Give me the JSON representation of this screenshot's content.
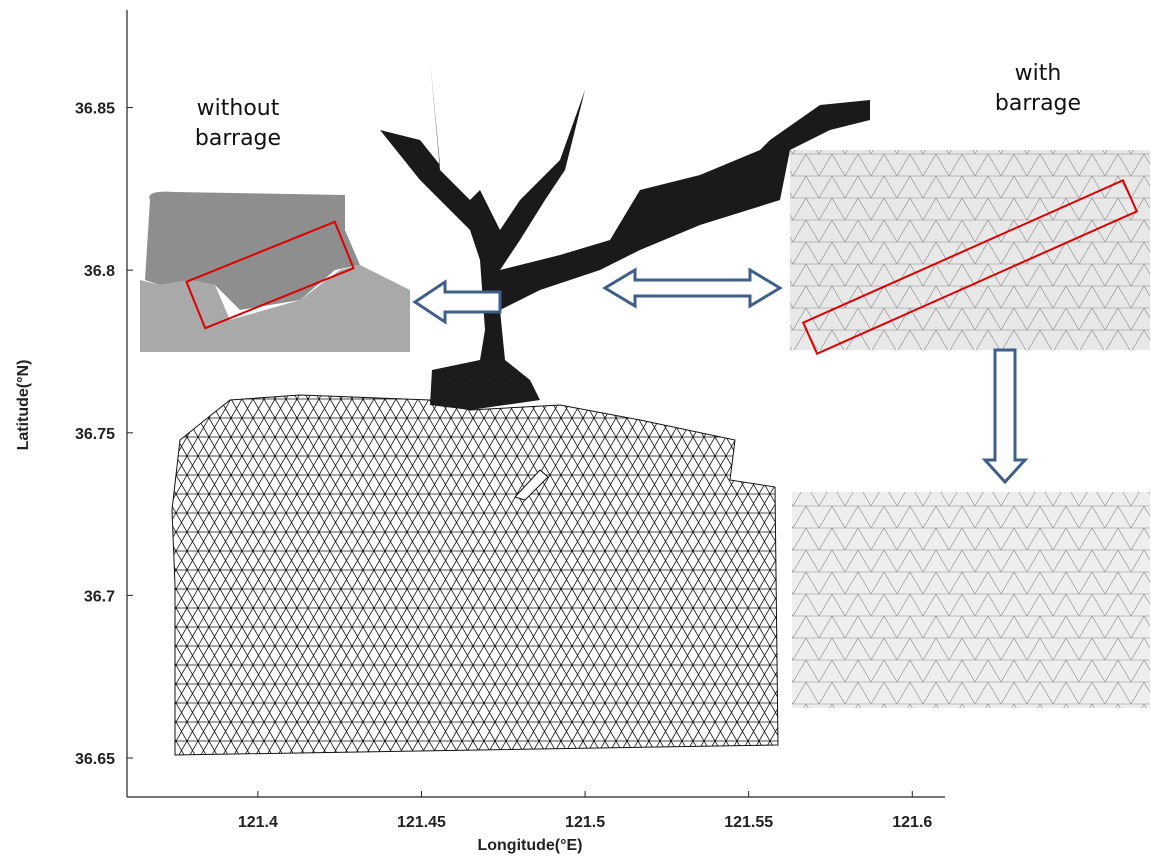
{
  "chart_data": {
    "type": "map",
    "xlabel": "Longitude(°E)",
    "ylabel": "Latitude(°N)",
    "xlim": [
      121.36,
      121.61
    ],
    "ylim": [
      36.638,
      36.88
    ],
    "xticks": [
      121.4,
      121.45,
      121.5,
      121.55,
      121.6
    ],
    "yticks": [
      36.65,
      36.7,
      36.75,
      36.8,
      36.85
    ],
    "annotations": [
      {
        "lines": [
          "without",
          "barrage"
        ]
      },
      {
        "lines": [
          "with",
          "barrage"
        ]
      }
    ]
  }
}
